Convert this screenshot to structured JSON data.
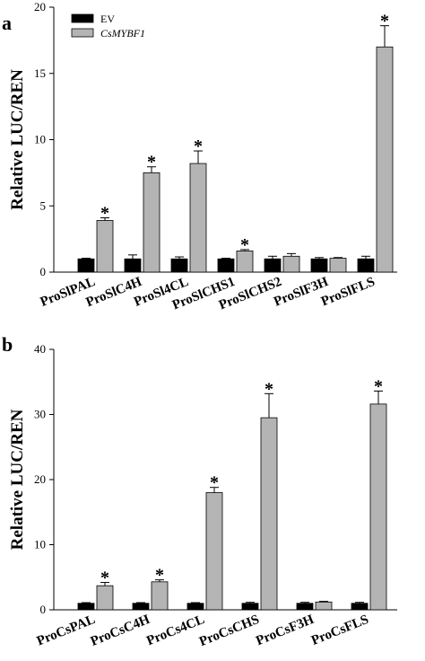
{
  "chart_data": [
    {
      "type": "bar",
      "panel_label": "a",
      "ylabel": "Relative  LUC/REN",
      "ylim": [
        0,
        20
      ],
      "yticks": [
        0,
        5,
        10,
        15,
        20
      ],
      "legend_position": "top-left",
      "categories": [
        "ProSlPAL",
        "ProSlC4H",
        "ProSl4CL",
        "ProSlCHS1",
        "ProSlCHS2",
        "ProSlF3H",
        "ProSlFLS"
      ],
      "series": [
        {
          "name": "EV",
          "color": "#000000",
          "italic": false,
          "values": [
            1.0,
            1.0,
            1.0,
            1.0,
            1.0,
            1.0,
            1.0
          ],
          "errors": [
            0.05,
            0.3,
            0.15,
            0.05,
            0.2,
            0.1,
            0.2
          ]
        },
        {
          "name": "CsMYBF1",
          "color": "#b4b4b4",
          "italic": true,
          "values": [
            3.9,
            7.5,
            8.2,
            1.6,
            1.2,
            1.05,
            17.0
          ],
          "errors": [
            0.2,
            0.45,
            0.95,
            0.1,
            0.2,
            0.05,
            1.6
          ]
        }
      ],
      "significance": [
        true,
        true,
        true,
        true,
        false,
        false,
        true
      ],
      "significance_mark": "*"
    },
    {
      "type": "bar",
      "panel_label": "b",
      "ylabel": "Relative  LUC/REN",
      "ylim": [
        0,
        40
      ],
      "yticks": [
        0,
        10,
        20,
        30,
        40
      ],
      "categories": [
        "ProCsPAL",
        "ProCsC4H",
        "ProCs4CL",
        "ProCsCHS",
        "ProCsF3H",
        "ProCsFLS"
      ],
      "series": [
        {
          "name": "EV",
          "color": "#000000",
          "values": [
            1.0,
            1.0,
            1.0,
            1.0,
            1.0,
            1.0
          ],
          "errors": [
            0.1,
            0.1,
            0.1,
            0.15,
            0.15,
            0.15
          ]
        },
        {
          "name": "CsMYBF1",
          "color": "#b4b4b4",
          "values": [
            3.7,
            4.3,
            18.0,
            29.5,
            1.2,
            31.6
          ],
          "errors": [
            0.5,
            0.3,
            0.8,
            3.7,
            0.1,
            2.0
          ]
        }
      ],
      "significance": [
        true,
        true,
        true,
        true,
        false,
        true
      ],
      "significance_mark": "*"
    }
  ]
}
